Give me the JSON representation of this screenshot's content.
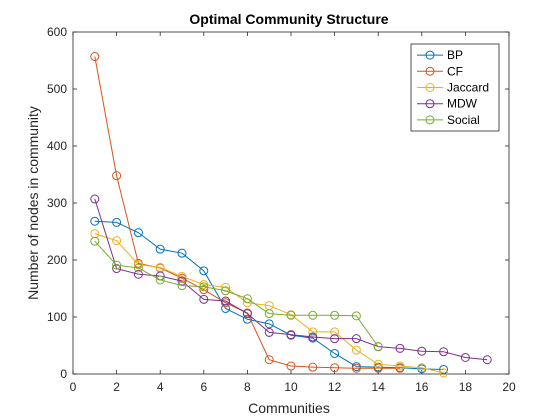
{
  "chart_data": {
    "type": "line",
    "title": "Optimal Community Structure",
    "xlabel": "Communities",
    "ylabel": "Number of nodes in community",
    "xlim": [
      0,
      20
    ],
    "ylim": [
      0,
      600
    ],
    "xticks": [
      0,
      2,
      4,
      6,
      8,
      10,
      12,
      14,
      16,
      18,
      20
    ],
    "yticks": [
      0,
      100,
      200,
      300,
      400,
      500,
      600
    ],
    "grid": false,
    "legend_position": "top-right",
    "marker": "open-circle",
    "series": [
      {
        "name": "BP",
        "color": "#0072BD",
        "x": [
          1,
          2,
          3,
          4,
          5,
          6,
          7,
          8,
          9,
          10,
          11,
          12,
          13,
          14,
          15,
          16,
          17
        ],
        "y": [
          268,
          266,
          248,
          219,
          212,
          181,
          115,
          96,
          88,
          68,
          63,
          36,
          13,
          12,
          11,
          9,
          8
        ]
      },
      {
        "name": "CF",
        "color": "#D95319",
        "x": [
          1,
          2,
          3,
          4,
          5,
          6,
          7,
          8,
          9,
          10,
          11,
          12,
          13,
          14,
          15
        ],
        "y": [
          557,
          348,
          194,
          186,
          168,
          148,
          125,
          107,
          25,
          14,
          12,
          11,
          10,
          10,
          10
        ]
      },
      {
        "name": "Jaccard",
        "color": "#EDB120",
        "x": [
          1,
          2,
          3,
          4,
          5,
          6,
          7,
          8,
          9,
          10,
          11,
          12,
          13,
          14,
          15,
          16,
          17
        ],
        "y": [
          246,
          234,
          192,
          187,
          171,
          157,
          152,
          125,
          120,
          104,
          74,
          74,
          42,
          17,
          14,
          11,
          2
        ]
      },
      {
        "name": "MDW",
        "color": "#7E2F8E",
        "x": [
          1,
          2,
          3,
          4,
          5,
          6,
          7,
          8,
          9,
          10,
          11,
          12,
          13,
          14,
          15,
          16,
          17,
          18,
          19
        ],
        "y": [
          307,
          185,
          175,
          172,
          163,
          131,
          128,
          106,
          73,
          69,
          65,
          62,
          62,
          48,
          45,
          40,
          39,
          29,
          25
        ]
      },
      {
        "name": "Social",
        "color": "#77AC30",
        "x": [
          1,
          2,
          3,
          4,
          5,
          6,
          7,
          8,
          9,
          10,
          11,
          12,
          13,
          14
        ],
        "y": [
          233,
          191,
          186,
          165,
          155,
          153,
          146,
          132,
          106,
          103,
          103,
          103,
          102,
          48
        ]
      }
    ]
  }
}
